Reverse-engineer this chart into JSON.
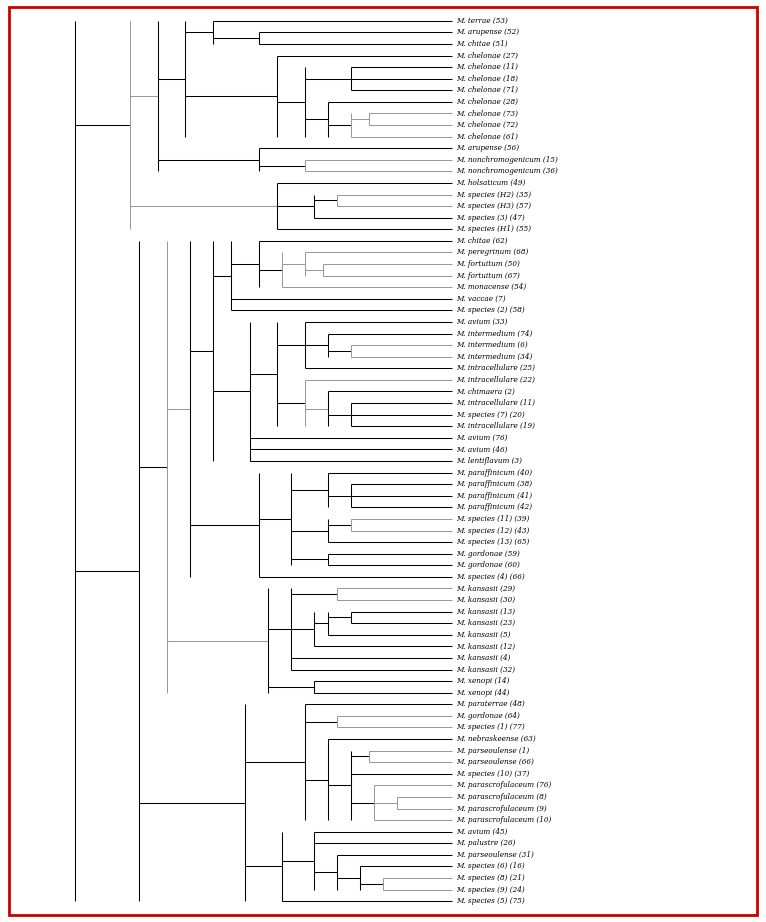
{
  "border_color": "#cc0000",
  "line_color_black": "#000000",
  "line_color_gray": "#999999",
  "bg_color": "#ffffff",
  "taxa": [
    "M. terrae (53)",
    "M. arupense (52)",
    "M. chitae (51)",
    "M. chelonae (27)",
    "M. chelonae (11)",
    "M. chelonae (18)",
    "M. chelonae (71)",
    "M. chelonae (28)",
    "M. chelonae (73)",
    "M. chelonae (72)",
    "M. chelonae (61)",
    "M. arupense (56)",
    "M. nonchromogenicum (15)",
    "M. nonchromogenicum (36)",
    "M. holsaticum (49)",
    "M. species (H2) (35)",
    "M. species (H3) (57)",
    "M. species (3) (47)",
    "M. species (H1) (55)",
    "M. chitae (62)",
    "M. peregrinum (68)",
    "M. fortuitum (50)",
    "M. fortuitum (67)",
    "M. monacense (54)",
    "M. vaccae (7)",
    "M. species (2) (58)",
    "M. avium (33)",
    "M. intermedium (74)",
    "M. intermedium (6)",
    "M. intermedium (34)",
    "M. intracellulare (25)",
    "M. intracellulare (22)",
    "M. chimaera (2)",
    "M. intracellulare (11)",
    "M. species (7) (20)",
    "M. intracellulare (19)",
    "M. avium (76)",
    "M. avium (46)",
    "M. lentiflavum (3)",
    "M. paraffinicum (40)",
    "M. paraffinicum (38)",
    "M. paraffinicum (41)",
    "M. paraffinicum (42)",
    "M. species (11) (39)",
    "M. species (12) (43)",
    "M. species (13) (65)",
    "M. gordonae (59)",
    "M. gordonae (60)",
    "M. species (4) (66)",
    "M. kansasii (29)",
    "M. kansasii (30)",
    "M. kansasii (13)",
    "M. kansasii (23)",
    "M. kansasii (5)",
    "M. kansasii (12)",
    "M. kansasii (4)",
    "M. kansasii (32)",
    "M. xenopi (14)",
    "M. xenopi (44)",
    "M. paraterrae (48)",
    "M. gordonae (64)",
    "M. species (1) (77)",
    "M. nebraskeense (63)",
    "M. parseoulense (1)",
    "M. parseoulense (66)",
    "M. species (10) (37)",
    "M. parascrofulaceum (76)",
    "M. parascrofulaceum (8)",
    "M. parascrofulaceum (9)",
    "M. parascrofulaceum (10)",
    "M. avium (45)",
    "M. palustre (26)",
    "M. parseoulense (31)",
    "M. species (6) (16)",
    "M. species (8) (21)",
    "M. species (9) (24)",
    "M. species (5) (75)"
  ],
  "figsize": [
    7.66,
    9.22
  ],
  "dpi": 100,
  "leaf_fontsize": 5.2,
  "lw": 0.75
}
